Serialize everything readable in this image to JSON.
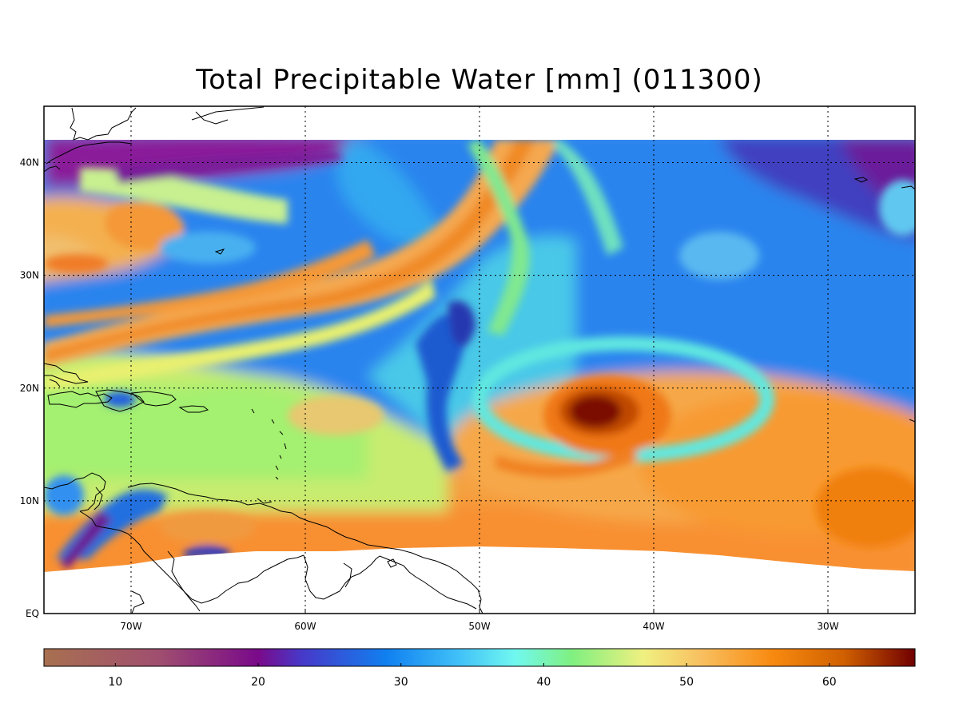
{
  "title": "Total Precipitable Water [mm]  (011300)",
  "map": {
    "lon_range": [
      -75,
      -25
    ],
    "lat_range": [
      0,
      45
    ],
    "data_lat_range": [
      4,
      42
    ],
    "lon_ticks": [
      {
        "value": -70,
        "label": "70W"
      },
      {
        "value": -60,
        "label": "60W"
      },
      {
        "value": -50,
        "label": "50W"
      },
      {
        "value": -40,
        "label": "40W"
      },
      {
        "value": -30,
        "label": "30W"
      }
    ],
    "lat_ticks": [
      {
        "value": 0,
        "label": "EQ"
      },
      {
        "value": 10,
        "label": "10N"
      },
      {
        "value": 20,
        "label": "20N"
      },
      {
        "value": 30,
        "label": "30N"
      },
      {
        "value": 40,
        "label": "40N"
      }
    ],
    "grid": "dotted",
    "coastlines": true
  },
  "colorbar": {
    "range": [
      5,
      66
    ],
    "ticks": [
      10,
      20,
      30,
      40,
      50,
      60
    ],
    "colors": [
      {
        "value": 5,
        "color": "#a87050"
      },
      {
        "value": 13,
        "color": "#a04f6f"
      },
      {
        "value": 20,
        "color": "#7a0a8a"
      },
      {
        "value": 23,
        "color": "#4838c8"
      },
      {
        "value": 29,
        "color": "#1080f0"
      },
      {
        "value": 34,
        "color": "#40c0f8"
      },
      {
        "value": 38,
        "color": "#70f8f0"
      },
      {
        "value": 42,
        "color": "#80f080"
      },
      {
        "value": 47,
        "color": "#f0f080"
      },
      {
        "value": 51,
        "color": "#f8c060"
      },
      {
        "value": 56,
        "color": "#f88a10"
      },
      {
        "value": 61,
        "color": "#d06000"
      },
      {
        "value": 66,
        "color": "#700000"
      }
    ]
  }
}
